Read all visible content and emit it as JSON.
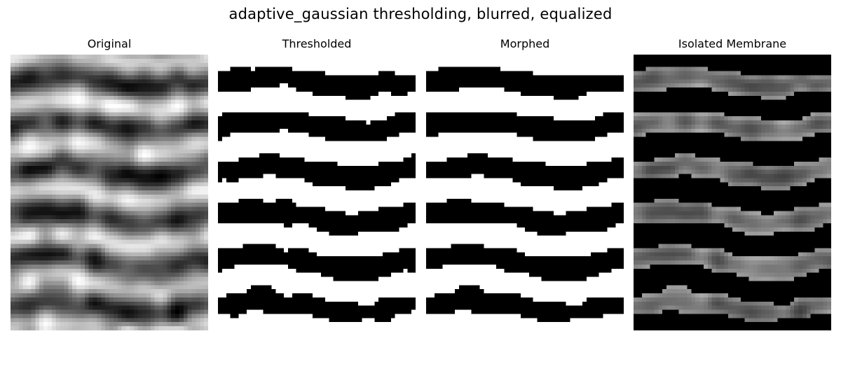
{
  "figure": {
    "suptitle": "adaptive_gaussian thresholding, blurred, equalized",
    "panels": [
      {
        "title": "Original",
        "kind": "grayscale"
      },
      {
        "title": "Thresholded",
        "kind": "binary"
      },
      {
        "title": "Morphed",
        "kind": "binary"
      },
      {
        "title": "Isolated Membrane",
        "kind": "masked-grayscale"
      }
    ],
    "colors": {
      "background": "#ffffff",
      "foreground": "#000000"
    }
  }
}
